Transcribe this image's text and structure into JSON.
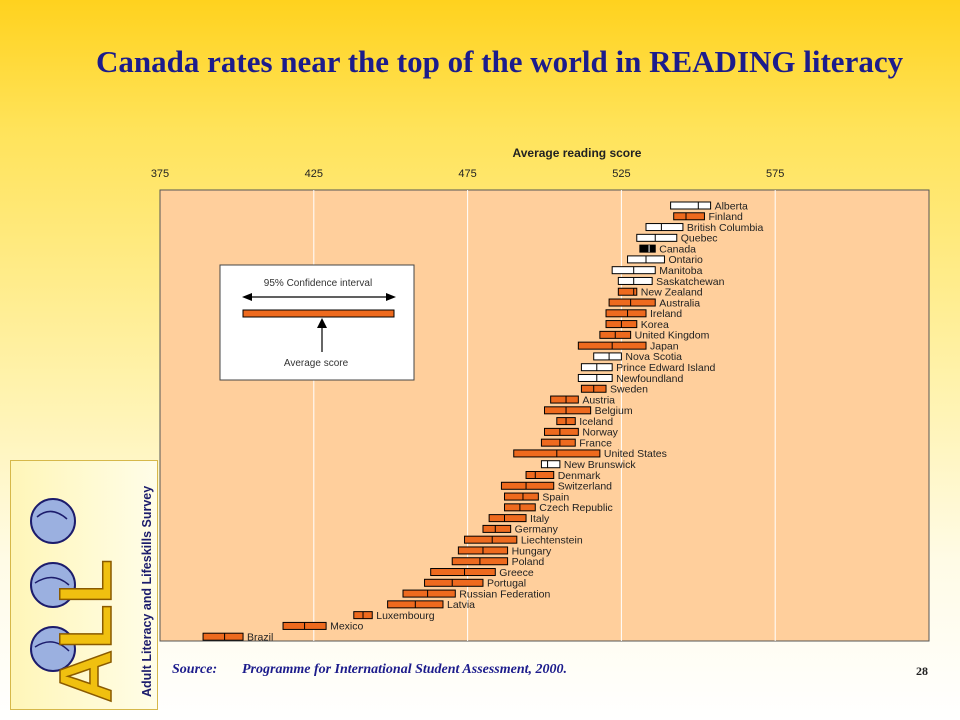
{
  "page": {
    "title": "Canada rates near the top of the world in READING literacy",
    "page_number": "28"
  },
  "source": {
    "label": "Source:",
    "text": "Programme for International Student Assessment, 2000."
  },
  "logo": {
    "initials": "ALL",
    "text": "Adult Literacy and Lifeskills Survey"
  },
  "colors": {
    "country_bar": "#ee6a1e",
    "province_bar": "#ffffff",
    "canada_bar": "#000000",
    "plot_bg": "#ffcf9c",
    "title": "#1c1c8c"
  },
  "legend": {
    "title": "95% Confidence interval",
    "average_label": "Average score"
  },
  "chart_data": {
    "type": "interval",
    "title": "",
    "xlabel": "Average reading score",
    "xlim": [
      375,
      625
    ],
    "xticks": [
      375,
      425,
      475,
      525,
      575
    ],
    "grid": true,
    "series": [
      {
        "category": "Alberta",
        "low": 541,
        "mean": 550,
        "high": 554,
        "kind": "province"
      },
      {
        "category": "Finland",
        "low": 542,
        "mean": 546,
        "high": 552,
        "kind": "country"
      },
      {
        "category": "British Columbia",
        "low": 533,
        "mean": 538,
        "high": 545,
        "kind": "province"
      },
      {
        "category": "Quebec",
        "low": 530,
        "mean": 536,
        "high": 543,
        "kind": "province"
      },
      {
        "category": "Canada",
        "low": 531,
        "mean": 534,
        "high": 536,
        "kind": "canada"
      },
      {
        "category": "Ontario",
        "low": 527,
        "mean": 533,
        "high": 539,
        "kind": "province"
      },
      {
        "category": "Manitoba",
        "low": 522,
        "mean": 529,
        "high": 536,
        "kind": "province"
      },
      {
        "category": "Saskatchewan",
        "low": 524,
        "mean": 529,
        "high": 535,
        "kind": "province"
      },
      {
        "category": "New Zealand",
        "low": 524,
        "mean": 529,
        "high": 530,
        "kind": "country"
      },
      {
        "category": "Australia",
        "low": 521,
        "mean": 528,
        "high": 536,
        "kind": "country"
      },
      {
        "category": "Ireland",
        "low": 520,
        "mean": 527,
        "high": 533,
        "kind": "country"
      },
      {
        "category": "Korea",
        "low": 520,
        "mean": 525,
        "high": 530,
        "kind": "country"
      },
      {
        "category": "United Kingdom",
        "low": 518,
        "mean": 523,
        "high": 528,
        "kind": "country"
      },
      {
        "category": "Japan",
        "low": 511,
        "mean": 522,
        "high": 533,
        "kind": "country"
      },
      {
        "category": "Nova Scotia",
        "low": 516,
        "mean": 521,
        "high": 525,
        "kind": "province"
      },
      {
        "category": "Prince Edward Island",
        "low": 512,
        "mean": 517,
        "high": 522,
        "kind": "province"
      },
      {
        "category": "Newfoundland",
        "low": 511,
        "mean": 517,
        "high": 522,
        "kind": "province"
      },
      {
        "category": "Sweden",
        "low": 512,
        "mean": 516,
        "high": 520,
        "kind": "country"
      },
      {
        "category": "Austria",
        "low": 502,
        "mean": 507,
        "high": 511,
        "kind": "country"
      },
      {
        "category": "Belgium",
        "low": 500,
        "mean": 507,
        "high": 515,
        "kind": "country"
      },
      {
        "category": "Iceland",
        "low": 504,
        "mean": 507,
        "high": 510,
        "kind": "country"
      },
      {
        "category": "Norway",
        "low": 500,
        "mean": 505,
        "high": 511,
        "kind": "country"
      },
      {
        "category": "France",
        "low": 499,
        "mean": 505,
        "high": 510,
        "kind": "country"
      },
      {
        "category": "United States",
        "low": 490,
        "mean": 504,
        "high": 518,
        "kind": "country"
      },
      {
        "category": "New Brunswick",
        "low": 499,
        "mean": 501,
        "high": 505,
        "kind": "province"
      },
      {
        "category": "Denmark",
        "low": 494,
        "mean": 497,
        "high": 503,
        "kind": "country"
      },
      {
        "category": "Switzerland",
        "low": 486,
        "mean": 494,
        "high": 503,
        "kind": "country"
      },
      {
        "category": "Spain",
        "low": 487,
        "mean": 493,
        "high": 498,
        "kind": "country"
      },
      {
        "category": "Czech Republic",
        "low": 487,
        "mean": 492,
        "high": 497,
        "kind": "country"
      },
      {
        "category": "Italy",
        "low": 482,
        "mean": 487,
        "high": 494,
        "kind": "country"
      },
      {
        "category": "Germany",
        "low": 480,
        "mean": 484,
        "high": 489,
        "kind": "country"
      },
      {
        "category": "Liechtenstein",
        "low": 474,
        "mean": 483,
        "high": 491,
        "kind": "country"
      },
      {
        "category": "Hungary",
        "low": 472,
        "mean": 480,
        "high": 488,
        "kind": "country"
      },
      {
        "category": "Poland",
        "low": 470,
        "mean": 479,
        "high": 488,
        "kind": "country"
      },
      {
        "category": "Greece",
        "low": 463,
        "mean": 474,
        "high": 484,
        "kind": "country"
      },
      {
        "category": "Portugal",
        "low": 461,
        "mean": 470,
        "high": 480,
        "kind": "country"
      },
      {
        "category": "Russian Federation",
        "low": 454,
        "mean": 462,
        "high": 471,
        "kind": "country"
      },
      {
        "category": "Latvia",
        "low": 449,
        "mean": 458,
        "high": 467,
        "kind": "country"
      },
      {
        "category": "Luxembourg",
        "low": 438,
        "mean": 441,
        "high": 444,
        "kind": "country"
      },
      {
        "category": "Mexico",
        "low": 415,
        "mean": 422,
        "high": 429,
        "kind": "country"
      },
      {
        "category": "Brazil",
        "low": 389,
        "mean": 396,
        "high": 402,
        "kind": "country"
      }
    ]
  }
}
